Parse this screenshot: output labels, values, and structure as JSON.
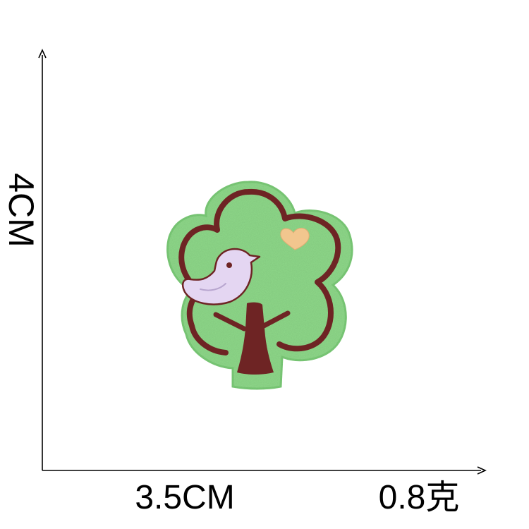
{
  "dimensions": {
    "height": "4CM",
    "width": "3.5CM",
    "weight": "0.8克"
  },
  "colors": {
    "felt_green": "#8fd98a",
    "felt_edge": "#7ccc78",
    "embroidery_brown": "#6e2424",
    "bird_lavender": "#e4d6f2",
    "heart_peach": "#f2c68e",
    "axis": "#000000"
  }
}
